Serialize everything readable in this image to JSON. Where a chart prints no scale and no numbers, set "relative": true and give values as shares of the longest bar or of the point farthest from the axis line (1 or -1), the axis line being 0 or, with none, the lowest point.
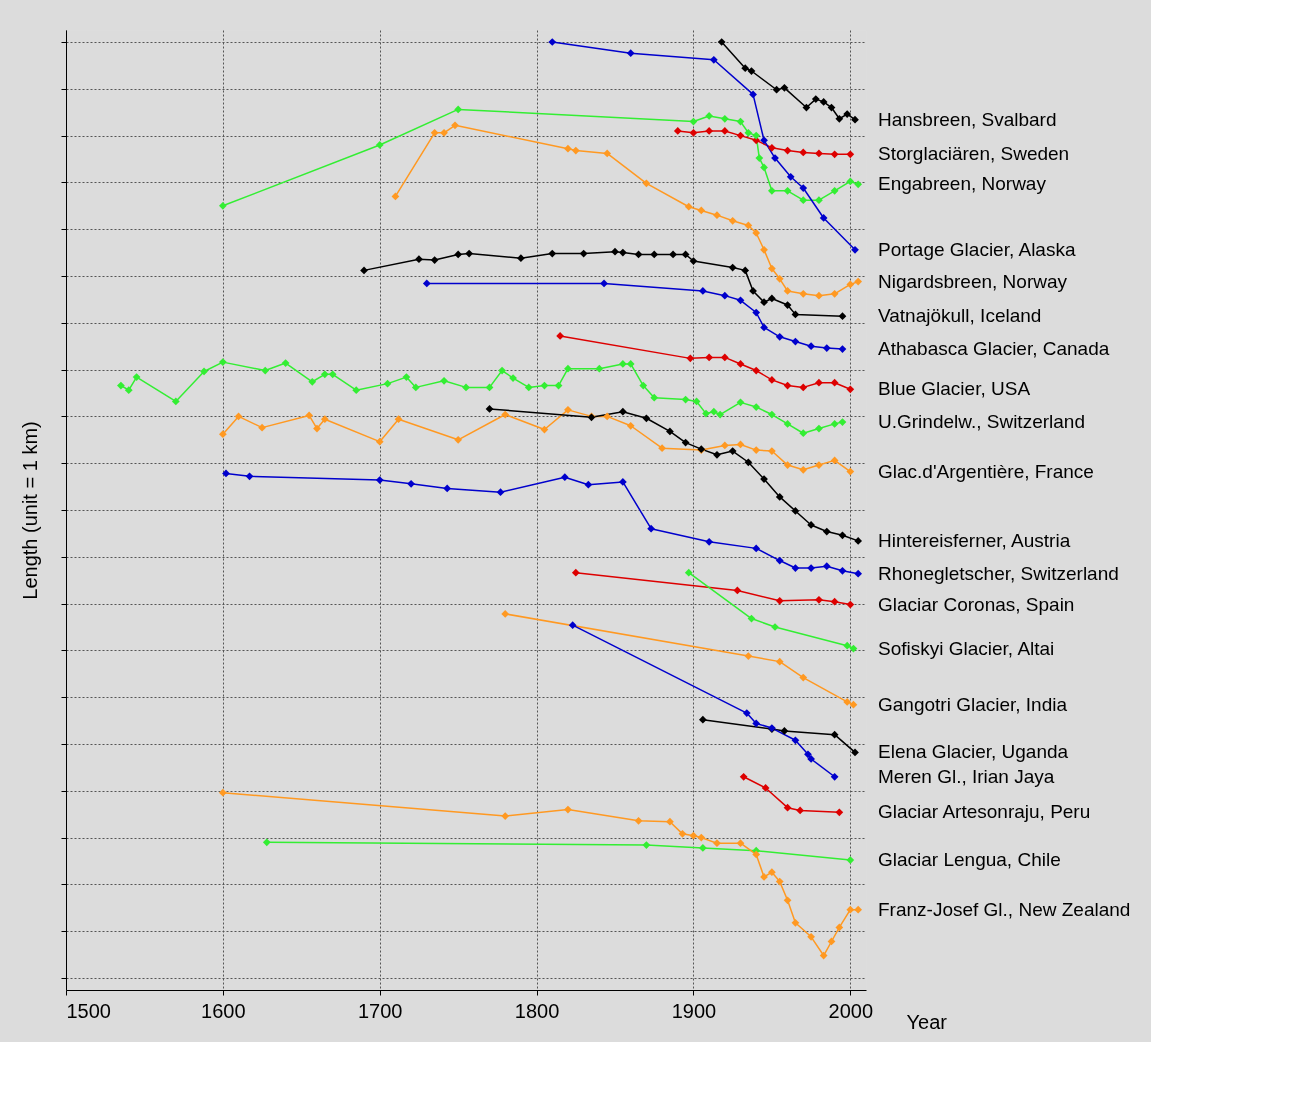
{
  "chart_data": {
    "type": "line",
    "relative": true,
    "xlabel": "Year",
    "ylabel": "Length (unit = 1 km)",
    "xlim": [
      1500,
      2010
    ],
    "xticks": [
      1500,
      1600,
      1700,
      1800,
      1900,
      2000
    ],
    "grid": true,
    "marker": "diamond",
    "line_style": "solid",
    "series": [
      {
        "name": "Hansbreen, Svalbard",
        "color": "#000000",
        "x": [
          1918,
          1933,
          1937,
          1953,
          1958,
          1972,
          1978,
          1983,
          1988,
          1993,
          1998,
          2003
        ],
        "values": [
          1.0,
          0.972,
          0.969,
          0.949,
          0.951,
          0.93,
          0.939,
          0.936,
          0.93,
          0.918,
          0.923,
          0.917
        ]
      },
      {
        "name": "Storglaciären, Sweden",
        "color": "#dd0000",
        "x": [
          1890,
          1900,
          1910,
          1920,
          1930,
          1940,
          1950,
          1960,
          1970,
          1980,
          1990,
          2000
        ],
        "values": [
          0.905,
          0.903,
          0.905,
          0.905,
          0.9,
          0.895,
          0.887,
          0.884,
          0.882,
          0.881,
          0.88,
          0.88
        ]
      },
      {
        "name": "Engabreen, Norway",
        "color": "#33ee33",
        "x": [
          1600,
          1700,
          1750,
          1900,
          1910,
          1920,
          1930,
          1935,
          1940,
          1942,
          1945,
          1950,
          1960,
          1970,
          1980,
          1990,
          2000,
          2005
        ],
        "values": [
          0.825,
          0.89,
          0.928,
          0.915,
          0.921,
          0.918,
          0.915,
          0.903,
          0.9,
          0.876,
          0.866,
          0.841,
          0.841,
          0.831,
          0.831,
          0.841,
          0.851,
          0.848
        ]
      },
      {
        "name": "Portage Glacier, Alaska",
        "color": "#0000cc",
        "x": [
          1810,
          1860,
          1913,
          1938,
          1945,
          1952,
          1962,
          1970,
          1983,
          2003
        ],
        "values": [
          1.0,
          0.988,
          0.981,
          0.944,
          0.895,
          0.876,
          0.856,
          0.844,
          0.812,
          0.778
        ]
      },
      {
        "name": "Nigardsbreen, Norway",
        "color": "#ff9922",
        "x": [
          1710,
          1735,
          1741,
          1748,
          1820,
          1825,
          1845,
          1870,
          1897,
          1905,
          1915,
          1925,
          1935,
          1940,
          1945,
          1950,
          1955,
          1960,
          1970,
          1980,
          1990,
          2000,
          2005
        ],
        "values": [
          0.835,
          0.903,
          0.903,
          0.911,
          0.886,
          0.884,
          0.881,
          0.849,
          0.824,
          0.82,
          0.815,
          0.809,
          0.804,
          0.796,
          0.778,
          0.758,
          0.747,
          0.734,
          0.731,
          0.729,
          0.731,
          0.741,
          0.744
        ]
      },
      {
        "name": "Vatnajökull, Iceland",
        "color": "#000000",
        "x": [
          1690,
          1725,
          1735,
          1750,
          1757,
          1790,
          1810,
          1830,
          1850,
          1855,
          1865,
          1875,
          1887,
          1895,
          1900,
          1925,
          1933,
          1938,
          1945,
          1950,
          1960,
          1965,
          1995
        ],
        "values": [
          0.756,
          0.768,
          0.767,
          0.773,
          0.774,
          0.769,
          0.774,
          0.774,
          0.776,
          0.775,
          0.773,
          0.773,
          0.773,
          0.773,
          0.766,
          0.759,
          0.756,
          0.734,
          0.722,
          0.726,
          0.719,
          0.709,
          0.707
        ]
      },
      {
        "name": "Athabasca Glacier, Canada",
        "color": "#0000cc",
        "x": [
          1730,
          1843,
          1906,
          1920,
          1930,
          1940,
          1945,
          1955,
          1965,
          1975,
          1985,
          1995
        ],
        "values": [
          0.742,
          0.742,
          0.734,
          0.729,
          0.724,
          0.711,
          0.695,
          0.685,
          0.68,
          0.675,
          0.673,
          0.672
        ]
      },
      {
        "name": "Blue Glacier, USA",
        "color": "#dd0000",
        "x": [
          1815,
          1898,
          1910,
          1920,
          1930,
          1940,
          1950,
          1960,
          1970,
          1980,
          1990,
          2000
        ],
        "values": [
          0.686,
          0.662,
          0.663,
          0.663,
          0.656,
          0.649,
          0.639,
          0.633,
          0.631,
          0.636,
          0.636,
          0.629
        ]
      },
      {
        "name": "U.Grindelw., Switzerland",
        "color": "#33ee33",
        "x": [
          1535,
          1540,
          1545,
          1570,
          1588,
          1600,
          1627,
          1640,
          1657,
          1665,
          1670,
          1685,
          1705,
          1717,
          1723,
          1741,
          1755,
          1770,
          1778,
          1785,
          1795,
          1805,
          1814,
          1820,
          1840,
          1855,
          1860,
          1868,
          1875,
          1895,
          1902,
          1908,
          1913,
          1917,
          1930,
          1940,
          1950,
          1960,
          1970,
          1980,
          1990,
          1995
        ],
        "values": [
          0.633,
          0.628,
          0.642,
          0.616,
          0.648,
          0.658,
          0.649,
          0.657,
          0.637,
          0.645,
          0.645,
          0.628,
          0.635,
          0.642,
          0.631,
          0.638,
          0.631,
          0.631,
          0.649,
          0.641,
          0.631,
          0.633,
          0.633,
          0.651,
          0.651,
          0.656,
          0.656,
          0.633,
          0.62,
          0.618,
          0.616,
          0.603,
          0.605,
          0.602,
          0.615,
          0.61,
          0.602,
          0.592,
          0.582,
          0.587,
          0.592,
          0.594
        ]
      },
      {
        "name": "Glac.d'Argentière, France",
        "color": "#ff9922",
        "x": [
          1600,
          1610,
          1625,
          1655,
          1660,
          1665,
          1700,
          1712,
          1750,
          1780,
          1805,
          1820,
          1835,
          1845,
          1860,
          1880,
          1905,
          1920,
          1930,
          1940,
          1950,
          1960,
          1970,
          1980,
          1990,
          2000
        ],
        "values": [
          0.581,
          0.6,
          0.588,
          0.601,
          0.587,
          0.597,
          0.573,
          0.597,
          0.575,
          0.602,
          0.586,
          0.607,
          0.6,
          0.6,
          0.59,
          0.566,
          0.564,
          0.569,
          0.57,
          0.564,
          0.563,
          0.548,
          0.543,
          0.548,
          0.553,
          0.541
        ]
      },
      {
        "name": "Hintereisferner, Austria",
        "color": "#000000",
        "x": [
          1770,
          1835,
          1855,
          1870,
          1885,
          1895,
          1905,
          1915,
          1925,
          1935,
          1945,
          1955,
          1965,
          1975,
          1985,
          1995,
          2005
        ],
        "values": [
          0.608,
          0.599,
          0.605,
          0.598,
          0.584,
          0.572,
          0.565,
          0.559,
          0.563,
          0.551,
          0.533,
          0.514,
          0.499,
          0.484,
          0.477,
          0.473,
          0.467
        ]
      },
      {
        "name": "Rhonegletscher, Switzerland",
        "color": "#0000cc",
        "x": [
          1602,
          1617,
          1700,
          1720,
          1743,
          1777,
          1818,
          1833,
          1855,
          1873,
          1910,
          1940,
          1955,
          1965,
          1975,
          1985,
          1995,
          2005
        ],
        "values": [
          0.539,
          0.536,
          0.532,
          0.528,
          0.523,
          0.519,
          0.535,
          0.527,
          0.53,
          0.48,
          0.466,
          0.459,
          0.446,
          0.438,
          0.438,
          0.44,
          0.435,
          0.432
        ]
      },
      {
        "name": "Glaciar Coronas, Spain",
        "color": "#dd0000",
        "x": [
          1825,
          1928,
          1955,
          1980,
          1990,
          2000
        ],
        "values": [
          0.433,
          0.414,
          0.403,
          0.404,
          0.402,
          0.399
        ]
      },
      {
        "name": "Sofiskyi Glacier, Altai",
        "color": "#33ee33",
        "x": [
          1897,
          1937,
          1952,
          1998,
          2002
        ],
        "values": [
          0.433,
          0.384,
          0.375,
          0.355,
          0.352
        ]
      },
      {
        "name": "Gangotri Glacier, India",
        "color": "#ff9922",
        "x": [
          1780,
          1935,
          1955,
          1970,
          1998,
          2002
        ],
        "values": [
          0.389,
          0.344,
          0.338,
          0.321,
          0.295,
          0.292
        ]
      },
      {
        "name": "Elena Glacier,  Uganda",
        "color": "#000000",
        "x": [
          1906,
          1950,
          1958,
          1990,
          2003
        ],
        "values": [
          0.276,
          0.266,
          0.264,
          0.26,
          0.241
        ]
      },
      {
        "name": "Meren Gl.,  Irian Jaya",
        "color": "#0000cc",
        "x": [
          1823,
          1934,
          1940,
          1950,
          1965,
          1973,
          1975,
          1990
        ],
        "values": [
          0.377,
          0.283,
          0.272,
          0.267,
          0.254,
          0.239,
          0.234,
          0.215
        ]
      },
      {
        "name": "Glaciar Artesonraju, Peru",
        "color": "#dd0000",
        "x": [
          1932,
          1946,
          1960,
          1968,
          1993
        ],
        "values": [
          0.215,
          0.203,
          0.182,
          0.179,
          0.177
        ]
      },
      {
        "name": "Glaciar Lengua, Chile",
        "color": "#33ee33",
        "x": [
          1628,
          1870,
          1906,
          1940,
          2000
        ],
        "values": [
          0.145,
          0.142,
          0.139,
          0.136,
          0.126
        ]
      },
      {
        "name": "Franz-Josef Gl., New Zealand",
        "color": "#ff9922",
        "x": [
          1600,
          1780,
          1820,
          1865,
          1885,
          1893,
          1900,
          1905,
          1915,
          1930,
          1940,
          1945,
          1950,
          1955,
          1960,
          1965,
          1975,
          1983,
          1988,
          1993,
          2000,
          2005
        ],
        "values": [
          0.198,
          0.173,
          0.18,
          0.168,
          0.167,
          0.154,
          0.152,
          0.15,
          0.144,
          0.144,
          0.132,
          0.108,
          0.113,
          0.103,
          0.083,
          0.059,
          0.044,
          0.024,
          0.039,
          0.054,
          0.073,
          0.073
        ]
      }
    ]
  }
}
